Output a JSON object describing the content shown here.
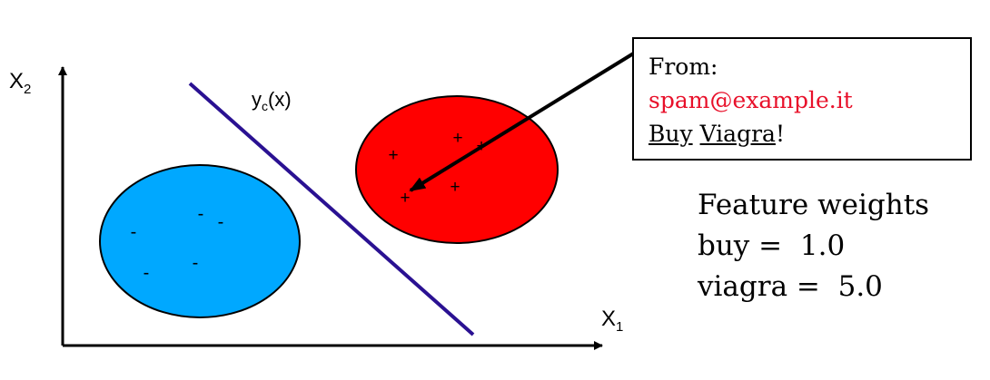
{
  "axes": {
    "x_label_main": "X",
    "x_label_sub": "1",
    "y_label_main": "X",
    "y_label_sub": "2"
  },
  "boundary": {
    "label_main": "y",
    "label_sub": "c",
    "label_tail": "(x)",
    "color": "#2a1192"
  },
  "clusters": {
    "negative": {
      "fill": "#00a8ff",
      "marks": [
        "-",
        "-",
        "-",
        "-",
        "-",
        "-"
      ]
    },
    "positive": {
      "fill": "#ff0000",
      "marks": [
        "+",
        "+",
        "+",
        "+",
        "+",
        "+"
      ]
    }
  },
  "email": {
    "from_label": "From:",
    "from_address": "spam@example.it",
    "subject_word_1": "Buy",
    "subject_space": " ",
    "subject_word_2": "Viagra",
    "subject_end": "!"
  },
  "features": {
    "title": "Feature weights",
    "rows": [
      {
        "name": "buy",
        "eq": " =  ",
        "value": "1.0"
      },
      {
        "name": "viagra",
        "eq": " =  ",
        "value": "5.0"
      }
    ]
  }
}
